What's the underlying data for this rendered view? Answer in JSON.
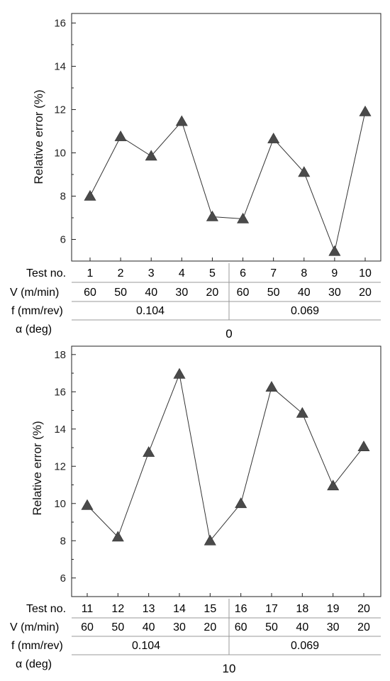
{
  "chart_data": [
    {
      "type": "line",
      "title": "",
      "xlabel": "",
      "ylabel": "Relative error (%)",
      "ylim": [
        5,
        16
      ],
      "yticks": [
        6,
        8,
        10,
        12,
        14,
        16
      ],
      "grid": false,
      "marker": "triangle",
      "x": [
        "1",
        "2",
        "3",
        "4",
        "5",
        "6",
        "7",
        "8",
        "9",
        "10"
      ],
      "values": [
        8.0,
        10.75,
        9.85,
        11.45,
        7.05,
        6.95,
        10.65,
        9.1,
        5.45,
        11.9
      ],
      "table": {
        "row_labels": [
          "Test no.",
          "V (m/min)",
          "f (mm/rev)",
          "α (deg)"
        ],
        "velocity": [
          "60",
          "50",
          "40",
          "30",
          "20",
          "60",
          "50",
          "40",
          "30",
          "20"
        ],
        "feed": [
          "0.104",
          "0.069"
        ],
        "alpha": "0"
      }
    },
    {
      "type": "line",
      "title": "",
      "xlabel": "",
      "ylabel": "Relative error (%)",
      "ylim": [
        5,
        18
      ],
      "yticks": [
        6,
        8,
        10,
        12,
        14,
        16,
        18
      ],
      "grid": false,
      "marker": "triangle",
      "x": [
        "11",
        "12",
        "13",
        "14",
        "15",
        "16",
        "17",
        "18",
        "19",
        "20"
      ],
      "values": [
        9.9,
        8.2,
        12.75,
        16.95,
        8.0,
        10.0,
        16.25,
        14.85,
        10.95,
        13.05
      ],
      "table": {
        "row_labels": [
          "Test no.",
          "V (m/min)",
          "f (mm/rev)",
          "α (deg)"
        ],
        "velocity": [
          "60",
          "50",
          "40",
          "30",
          "20",
          "60",
          "50",
          "40",
          "30",
          "20"
        ],
        "feed": [
          "0.104",
          "0.069"
        ],
        "alpha": "10"
      }
    }
  ]
}
